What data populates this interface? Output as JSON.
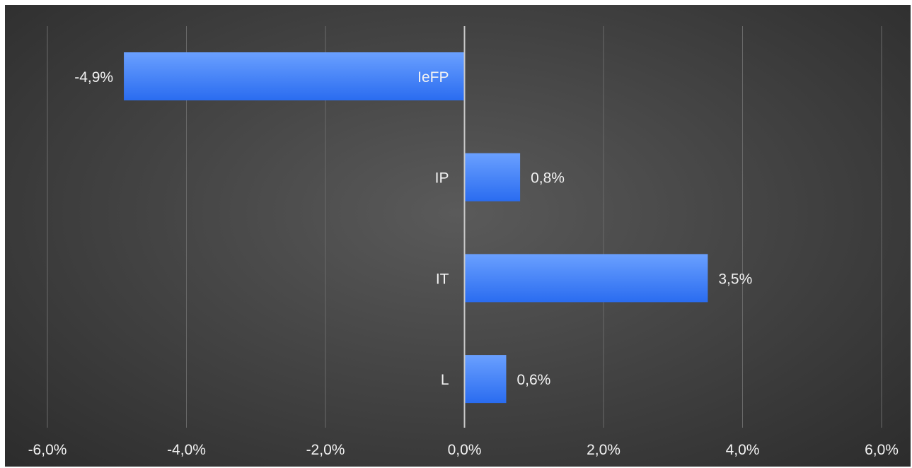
{
  "chart_data": {
    "type": "bar",
    "orientation": "horizontal",
    "categories": [
      "IeFP",
      "IP",
      "IT",
      "L"
    ],
    "values": [
      -4.9,
      0.8,
      3.5,
      0.6
    ],
    "data_labels": [
      "-4,9%",
      "0,8%",
      "3,5%",
      "0,6%"
    ],
    "xlim": [
      -6,
      6
    ],
    "x_ticks": [
      -6,
      -4,
      -2,
      0,
      2,
      4,
      6
    ],
    "x_tick_labels": [
      "-6,0%",
      "-4,0%",
      "-2,0%",
      "0,0%",
      "2,0%",
      "4,0%",
      "6,0%"
    ],
    "title": "",
    "xlabel": "",
    "ylabel": "",
    "grid": true,
    "legend": "none",
    "colors": {
      "bar_top": "#6aa0ff",
      "bar_bottom": "#2a6cf0",
      "grid": "#6a6a6a",
      "axis": "#c8c8c8",
      "text": "#f2f2f2"
    }
  }
}
